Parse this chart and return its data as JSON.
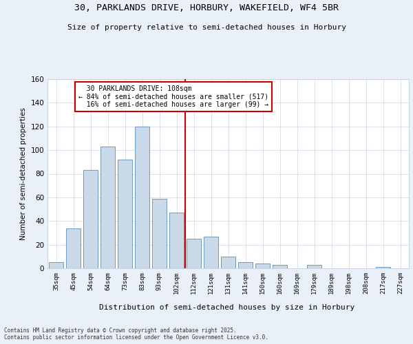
{
  "title1": "30, PARKLANDS DRIVE, HORBURY, WAKEFIELD, WF4 5BR",
  "title2": "Size of property relative to semi-detached houses in Horbury",
  "xlabel": "Distribution of semi-detached houses by size in Horbury",
  "ylabel": "Number of semi-detached properties",
  "categories": [
    "35sqm",
    "45sqm",
    "54sqm",
    "64sqm",
    "73sqm",
    "83sqm",
    "93sqm",
    "102sqm",
    "112sqm",
    "121sqm",
    "131sqm",
    "141sqm",
    "150sqm",
    "160sqm",
    "169sqm",
    "179sqm",
    "189sqm",
    "198sqm",
    "208sqm",
    "217sqm",
    "227sqm"
  ],
  "values": [
    5,
    34,
    83,
    103,
    92,
    120,
    59,
    47,
    25,
    27,
    10,
    5,
    4,
    3,
    0,
    3,
    0,
    0,
    0,
    1,
    0
  ],
  "bar_color": "#c9d9e8",
  "bar_edge_color": "#5b8db8",
  "subject_label": "30 PARKLANDS DRIVE: 108sqm",
  "pct_smaller": 84,
  "n_smaller": 517,
  "pct_larger": 16,
  "n_larger": 99,
  "vline_x_index": 7.5,
  "ylim": [
    0,
    160
  ],
  "yticks": [
    0,
    20,
    40,
    60,
    80,
    100,
    120,
    140,
    160
  ],
  "footnote": "Contains HM Land Registry data © Crown copyright and database right 2025.\nContains public sector information licensed under the Open Government Licence v3.0.",
  "background_color": "#eaf0f8",
  "plot_background": "#ffffff",
  "grid_color": "#c8d4e4",
  "annotation_box_edge": "#cc0000",
  "vline_color": "#cc0000"
}
